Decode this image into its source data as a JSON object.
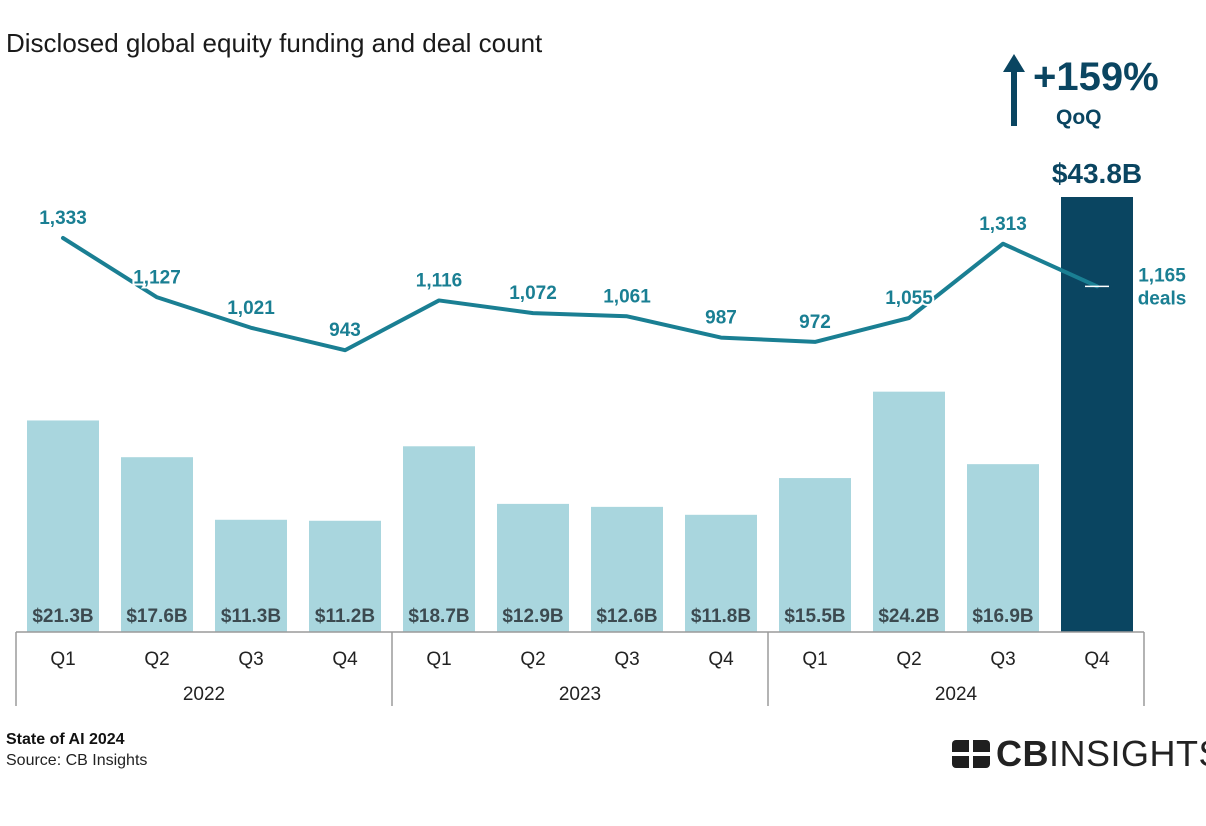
{
  "chart_data": {
    "type": "bar",
    "title": "Disclosed global equity funding and deal count",
    "categories": [
      "Q1",
      "Q2",
      "Q3",
      "Q4",
      "Q1",
      "Q2",
      "Q3",
      "Q4",
      "Q1",
      "Q2",
      "Q3",
      "Q4"
    ],
    "years": [
      {
        "label": "2022",
        "span": 4
      },
      {
        "label": "2023",
        "span": 4
      },
      {
        "label": "2024",
        "span": 4
      }
    ],
    "series": [
      {
        "name": "Disclosed equity funding ($B)",
        "type": "bar",
        "values": [
          21.3,
          17.6,
          11.3,
          11.2,
          18.7,
          12.9,
          12.6,
          11.8,
          15.5,
          24.2,
          16.9,
          43.8
        ],
        "labels": [
          "$21.3B",
          "$17.6B",
          "$11.3B",
          "$11.2B",
          "$18.7B",
          "$12.9B",
          "$12.6B",
          "$11.8B",
          "$15.5B",
          "$24.2B",
          "$16.9B",
          "$43.8B"
        ],
        "color": "#a9d6de",
        "highlight_color": "#0a4561",
        "highlight_index": 11
      },
      {
        "name": "Deal count",
        "type": "line",
        "values": [
          1333,
          1127,
          1021,
          943,
          1116,
          1072,
          1061,
          987,
          972,
          1055,
          1313,
          1165
        ],
        "labels": [
          "1,333",
          "1,127",
          "1,021",
          "943",
          "1,116",
          "1,072",
          "1,061",
          "987",
          "972",
          "1,055",
          "1,313",
          "1,165"
        ],
        "last_label_suffix": "deals",
        "color": "#1a7f93"
      }
    ],
    "annotation": {
      "change": "+159%",
      "period": "QoQ",
      "color": "#0a4561"
    },
    "ylim": [
      0,
      45
    ]
  },
  "footer": {
    "report": "State of AI 2024",
    "source": "Source: CB Insights"
  },
  "logo": {
    "bold": "CB",
    "light": "INSIGHTS"
  }
}
